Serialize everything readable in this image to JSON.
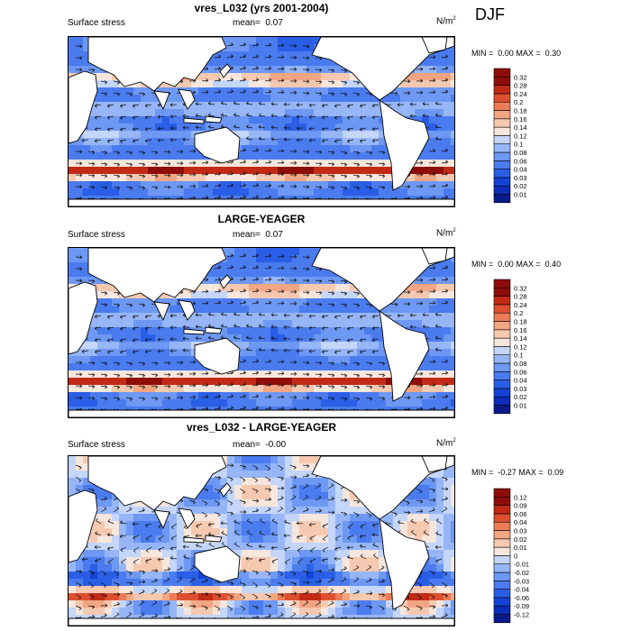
{
  "season": "DJF",
  "panels": [
    {
      "title": "vres_L032 (yrs 2001-2004)",
      "left_label": "Surface stress",
      "mean_label": "mean=",
      "mean_value": "0.07",
      "units": "N/m",
      "units_exp": "2",
      "min_label": "MIN =",
      "min_value": "0.00",
      "max_label": "MAX =",
      "max_value": "0.30"
    },
    {
      "title": "LARGE-YEAGER",
      "left_label": "Surface stress",
      "mean_label": "mean=",
      "mean_value": "0.07",
      "units": "N/m",
      "units_exp": "2",
      "min_label": "MIN =",
      "min_value": "0.00",
      "max_label": "MAX =",
      "max_value": "0.40"
    },
    {
      "title": "vres_L032 - LARGE-YEAGER",
      "left_label": "Surface stress",
      "mean_label": "mean=",
      "mean_value": "-0.00",
      "units": "N/m",
      "units_exp": "2",
      "min_label": "MIN =",
      "min_value": "-0.27",
      "max_label": "MAX =",
      "max_value": "0.09"
    }
  ],
  "chart_data": [
    {
      "type": "heatmap",
      "title": "vres_L032 (yrs 2001-2004)",
      "variable": "Surface stress",
      "units": "N/m2",
      "mean": 0.07,
      "min": 0.0,
      "max": 0.3,
      "season": "DJF",
      "colorbar_levels": [
        0.01,
        0.02,
        0.03,
        0.04,
        0.06,
        0.08,
        0.1,
        0.12,
        0.14,
        0.16,
        0.18,
        0.2,
        0.24,
        0.28,
        0.32
      ],
      "colormap": "blue-white-red",
      "vectors": true
    },
    {
      "type": "heatmap",
      "title": "LARGE-YEAGER",
      "variable": "Surface stress",
      "units": "N/m2",
      "mean": 0.07,
      "min": 0.0,
      "max": 0.4,
      "season": "DJF",
      "colorbar_levels": [
        0.01,
        0.02,
        0.03,
        0.04,
        0.06,
        0.08,
        0.1,
        0.12,
        0.14,
        0.16,
        0.18,
        0.2,
        0.24,
        0.28,
        0.32
      ],
      "colormap": "blue-white-red",
      "vectors": true
    },
    {
      "type": "heatmap",
      "title": "vres_L032 - LARGE-YEAGER",
      "variable": "Surface stress",
      "units": "N/m2",
      "mean": -0.0,
      "min": -0.27,
      "max": 0.09,
      "season": "DJF",
      "colorbar_levels": [
        -0.12,
        -0.09,
        -0.06,
        -0.04,
        -0.03,
        -0.02,
        -0.01,
        0,
        0.01,
        0.02,
        0.03,
        0.04,
        0.06,
        0.09,
        0.12
      ],
      "colormap": "blue-white-red",
      "vectors": true
    }
  ]
}
